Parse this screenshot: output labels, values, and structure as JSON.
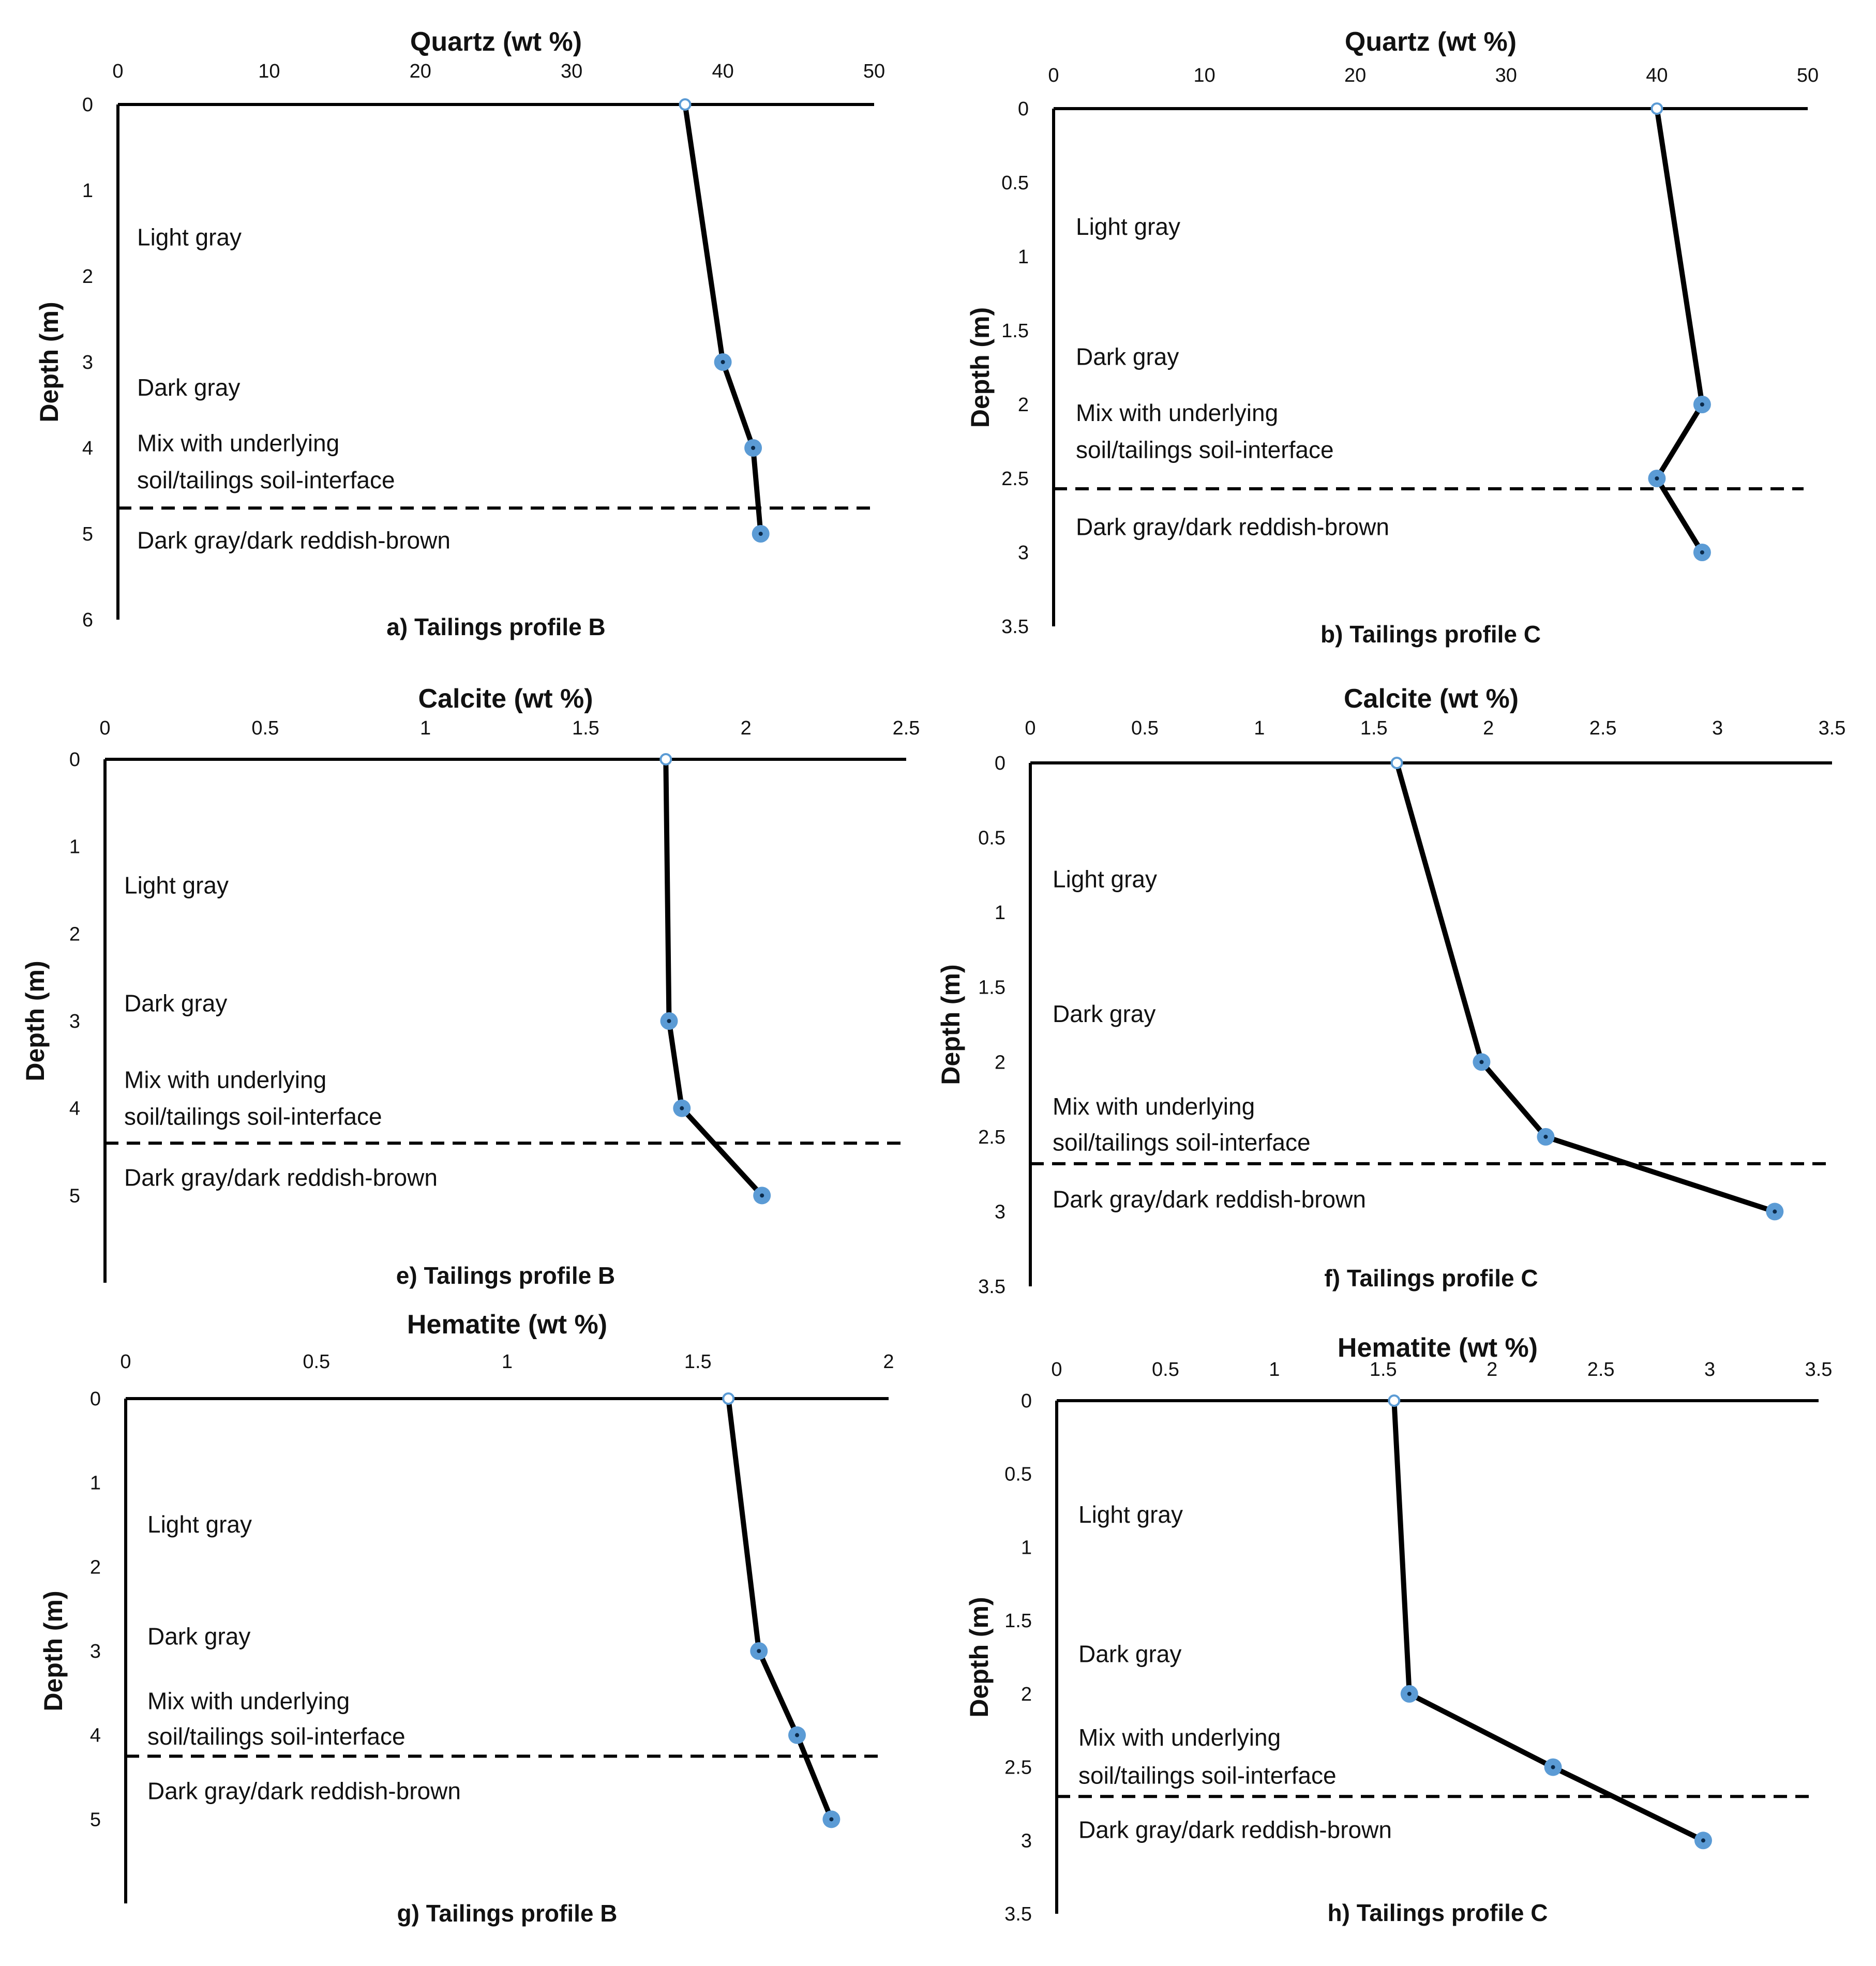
{
  "figure": {
    "series_color": "#000000",
    "marker_color": "#5b9bd5",
    "zone_labels": [
      "Light gray",
      "Dark gray",
      "Mix with underlying",
      "soil/tailings soil-interface",
      "Dark gray/dark reddish-brown"
    ]
  },
  "chart_data": [
    {
      "id": "a",
      "type": "line",
      "mineral": "Quartz",
      "profile": "B",
      "title": "Quartz (wt %)",
      "caption": "a) Tailings profile B",
      "ylabel": "Depth (m)",
      "xlim": [
        0,
        50
      ],
      "xticks": [
        "0",
        "10",
        "20",
        "30",
        "40",
        "50"
      ],
      "ylim": [
        0,
        6
      ],
      "yticks": [
        "0",
        "1",
        "2",
        "3",
        "4",
        "5",
        "6"
      ],
      "x": [
        37.5,
        40,
        42,
        42.5
      ],
      "y": [
        0,
        3,
        4,
        5
      ],
      "boundary_depth": 4.7,
      "zones": [
        {
          "text": "Light gray",
          "depth": 1.55
        },
        {
          "text": "Dark gray",
          "depth": 3.3
        },
        {
          "text": "Mix with underlying",
          "depth": 3.95
        },
        {
          "text": "soil/tailings soil-interface",
          "depth": 4.38
        },
        {
          "text": "Dark gray/dark reddish-brown",
          "depth": 5.08
        }
      ]
    },
    {
      "id": "b",
      "type": "line",
      "mineral": "Quartz",
      "profile": "C",
      "title": "Quartz (wt %)",
      "caption": "b) Tailings profile C",
      "ylabel": "Depth (m)",
      "xlim": [
        0,
        50
      ],
      "xticks": [
        "0",
        "10",
        "20",
        "30",
        "40",
        "50"
      ],
      "ylim": [
        0,
        3.5
      ],
      "yticks": [
        "0",
        "0.5",
        "1",
        "1.5",
        "2",
        "2.5",
        "3",
        "3.5"
      ],
      "x": [
        40,
        43,
        40,
        43
      ],
      "y": [
        0,
        2,
        2.5,
        3
      ],
      "boundary_depth": 2.57,
      "zones": [
        {
          "text": "Light gray",
          "depth": 0.8
        },
        {
          "text": "Dark gray",
          "depth": 1.68
        },
        {
          "text": "Mix with underlying",
          "depth": 2.06
        },
        {
          "text": "soil/tailings soil-interface",
          "depth": 2.31
        },
        {
          "text": "Dark gray/dark reddish-brown",
          "depth": 2.83
        }
      ]
    },
    {
      "id": "e",
      "type": "line",
      "mineral": "Calcite",
      "profile": "B",
      "title": "Calcite (wt %)",
      "caption": "e) Tailings profile B",
      "ylabel": "Depth (m)",
      "xlim": [
        0,
        2.5
      ],
      "xticks": [
        "0",
        "0.5",
        "1",
        "1.5",
        "2",
        "2.5"
      ],
      "ylim": [
        0,
        6
      ],
      "yticks": [
        "0",
        "1",
        "2",
        "3",
        "4",
        "5",
        ""
      ],
      "x": [
        1.75,
        1.76,
        1.8,
        2.05
      ],
      "y": [
        0,
        3,
        4,
        5
      ],
      "boundary_depth": 4.4,
      "zones": [
        {
          "text": "Light gray",
          "depth": 1.45
        },
        {
          "text": "Dark gray",
          "depth": 2.8
        },
        {
          "text": "Mix with underlying",
          "depth": 3.68
        },
        {
          "text": "soil/tailings soil-interface",
          "depth": 4.1
        },
        {
          "text": "Dark gray/dark reddish-brown",
          "depth": 4.8
        }
      ]
    },
    {
      "id": "f",
      "type": "line",
      "mineral": "Calcite",
      "profile": "C",
      "title": "Calcite (wt %)",
      "caption": "f) Tailings profile C",
      "ylabel": "Depth (m)",
      "xlim": [
        0,
        3.5
      ],
      "xticks": [
        "0",
        "0.5",
        "1",
        "1.5",
        "2",
        "2.5",
        "3",
        "3.5"
      ],
      "ylim": [
        0,
        3.5
      ],
      "yticks": [
        "0",
        "0.5",
        "1",
        "1.5",
        "2",
        "2.5",
        "3",
        "3.5"
      ],
      "x": [
        1.6,
        1.97,
        2.25,
        3.25
      ],
      "y": [
        0,
        2,
        2.5,
        3
      ],
      "boundary_depth": 2.68,
      "zones": [
        {
          "text": "Light gray",
          "depth": 0.78
        },
        {
          "text": "Dark gray",
          "depth": 1.68
        },
        {
          "text": "Mix with underlying",
          "depth": 2.3
        },
        {
          "text": "soil/tailings soil-interface",
          "depth": 2.54
        },
        {
          "text": "Dark gray/dark reddish-brown",
          "depth": 2.92
        }
      ]
    },
    {
      "id": "g",
      "type": "line",
      "mineral": "Hematite",
      "profile": "B",
      "title": "Hematite (wt %)",
      "caption": "g) Tailings profile B",
      "ylabel": "Depth (m)",
      "xlim": [
        0,
        2
      ],
      "xticks": [
        "0",
        "0.5",
        "1",
        "1.5",
        "2"
      ],
      "ylim": [
        0,
        6
      ],
      "yticks": [
        "0",
        "1",
        "2",
        "3",
        "4",
        "5",
        ""
      ],
      "x": [
        1.58,
        1.66,
        1.76,
        1.85
      ],
      "y": [
        0,
        3,
        4,
        5
      ],
      "boundary_depth": 4.25,
      "zones": [
        {
          "text": "Light gray",
          "depth": 1.5
        },
        {
          "text": "Dark gray",
          "depth": 2.83
        },
        {
          "text": "Mix with underlying",
          "depth": 3.6
        },
        {
          "text": "soil/tailings soil-interface",
          "depth": 4.02
        },
        {
          "text": "Dark gray/dark reddish-brown",
          "depth": 4.67
        }
      ]
    },
    {
      "id": "h",
      "type": "line",
      "mineral": "Hematite",
      "profile": "C",
      "title": "Hematite (wt %)",
      "caption": "h) Tailings profile C",
      "ylabel": "Depth (m)",
      "xlim": [
        0,
        3.5
      ],
      "xticks": [
        "0",
        "0.5",
        "1",
        "1.5",
        "2",
        "2.5",
        "3",
        "3.5"
      ],
      "ylim": [
        0,
        3.5
      ],
      "yticks": [
        "0",
        "0.5",
        "1",
        "1.5",
        "2",
        "2.5",
        "3",
        "3.5"
      ],
      "x": [
        1.55,
        1.62,
        2.28,
        2.97
      ],
      "y": [
        0,
        2,
        2.5,
        3
      ],
      "boundary_depth": 2.7,
      "zones": [
        {
          "text": "Light gray",
          "depth": 0.78
        },
        {
          "text": "Dark gray",
          "depth": 1.73
        },
        {
          "text": "Mix with underlying",
          "depth": 2.3
        },
        {
          "text": "soil/tailings soil-interface",
          "depth": 2.56
        },
        {
          "text": "Dark gray/dark reddish-brown",
          "depth": 2.93
        }
      ]
    }
  ]
}
